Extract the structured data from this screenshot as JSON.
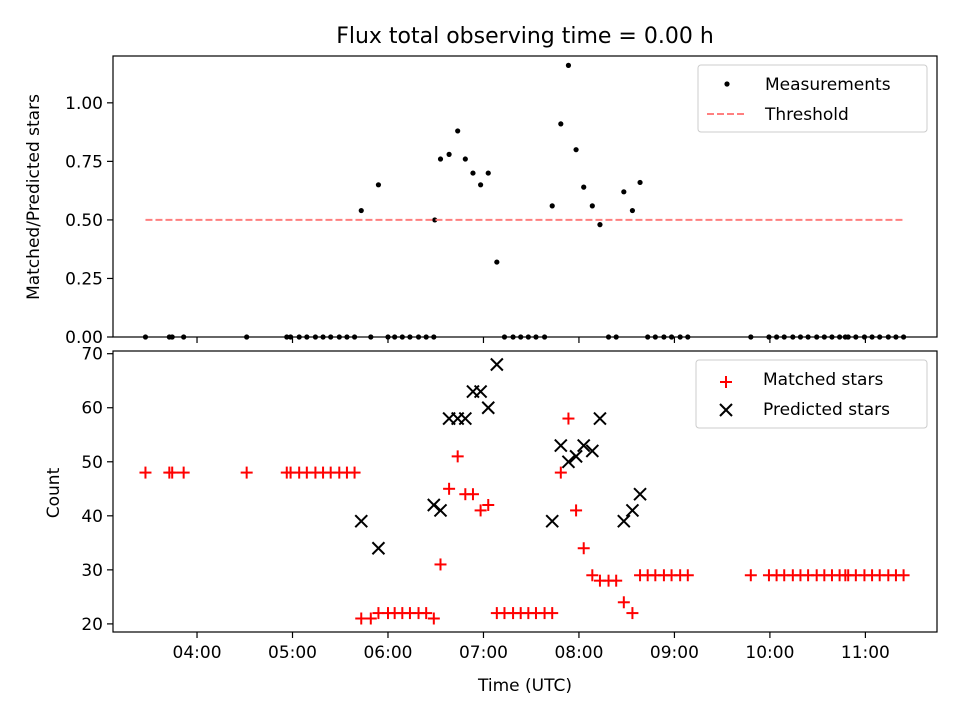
{
  "chart_data": [
    {
      "type": "scatter",
      "title": "Flux total observing time = 0.00 h",
      "xlabel": "",
      "ylabel": "Matched/Predicted stars",
      "xlim": [
        3.12,
        11.75
      ],
      "ylim": [
        0.0,
        1.2
      ],
      "yticks": [
        0.0,
        0.25,
        0.5,
        0.75,
        1.0
      ],
      "ytick_labels": [
        "0.00",
        "0.25",
        "0.50",
        "0.75",
        "1.00"
      ],
      "xticks": [
        4,
        5,
        6,
        7,
        8,
        9,
        10,
        11
      ],
      "xtick_labels_shown": false,
      "legend_position": "top-right",
      "series": [
        {
          "name": "Measurements",
          "marker": "dot",
          "color": "#000000",
          "x": [
            3.46,
            3.71,
            3.74,
            3.86,
            4.52,
            4.94,
            4.98,
            5.07,
            5.15,
            5.24,
            5.32,
            5.4,
            5.49,
            5.57,
            5.65,
            5.72,
            5.82,
            5.9,
            6.0,
            6.07,
            6.15,
            6.23,
            6.32,
            6.4,
            6.48,
            6.49,
            6.55,
            6.64,
            6.73,
            6.81,
            6.89,
            6.97,
            7.05,
            7.14,
            7.22,
            7.31,
            7.39,
            7.47,
            7.55,
            7.64,
            7.72,
            7.81,
            7.89,
            7.97,
            8.05,
            8.14,
            8.22,
            8.31,
            8.39,
            8.47,
            8.56,
            8.64,
            8.72,
            8.8,
            8.89,
            8.97,
            9.06,
            9.14,
            9.8,
            9.99,
            10.07,
            10.15,
            10.24,
            10.32,
            10.4,
            10.49,
            10.57,
            10.65,
            10.73,
            10.79,
            10.82,
            10.9,
            10.99,
            11.07,
            11.15,
            11.24,
            11.32,
            11.4
          ],
          "y": [
            0,
            0,
            0,
            0,
            0,
            0,
            0,
            0,
            0,
            0,
            0,
            0,
            0,
            0,
            0,
            0.54,
            0,
            0.65,
            0,
            0,
            0,
            0,
            0,
            0,
            0,
            0.5,
            0.76,
            0.78,
            0.88,
            0.76,
            0.7,
            0.65,
            0.7,
            0.32,
            0,
            0,
            0,
            0,
            0,
            0,
            0.56,
            0.91,
            1.16,
            0.8,
            0.64,
            0.56,
            0.48,
            0,
            0,
            0.62,
            0.54,
            0.66,
            0,
            0,
            0,
            0,
            0,
            0,
            0,
            0,
            0,
            0,
            0,
            0,
            0,
            0,
            0,
            0,
            0,
            0,
            0,
            0,
            0,
            0,
            0,
            0,
            0,
            0
          ]
        },
        {
          "name": "Threshold",
          "line_style": "dashed",
          "color": "#ff7f7f",
          "x": [
            3.46,
            11.4
          ],
          "y": [
            0.5,
            0.5
          ]
        }
      ]
    },
    {
      "type": "scatter",
      "title": "",
      "xlabel": "Time (UTC)",
      "ylabel": "Count",
      "xlim": [
        3.12,
        11.75
      ],
      "ylim": [
        18.5,
        70.5
      ],
      "yticks": [
        20,
        30,
        40,
        50,
        60,
        70
      ],
      "ytick_labels": [
        "20",
        "30",
        "40",
        "50",
        "60",
        "70"
      ],
      "xticks": [
        4,
        5,
        6,
        7,
        8,
        9,
        10,
        11
      ],
      "xtick_labels": [
        "04:00",
        "05:00",
        "06:00",
        "07:00",
        "08:00",
        "09:00",
        "10:00",
        "11:00"
      ],
      "legend_position": "top-right",
      "series": [
        {
          "name": "Matched stars",
          "marker": "plus",
          "color": "#ff0000",
          "x": [
            3.46,
            3.71,
            3.74,
            3.86,
            4.52,
            4.94,
            4.98,
            5.07,
            5.15,
            5.24,
            5.32,
            5.4,
            5.49,
            5.57,
            5.65,
            5.72,
            5.82,
            5.9,
            6.0,
            6.07,
            6.15,
            6.23,
            6.32,
            6.4,
            6.48,
            6.55,
            6.64,
            6.73,
            6.81,
            6.89,
            6.97,
            7.05,
            7.14,
            7.22,
            7.31,
            7.39,
            7.47,
            7.55,
            7.64,
            7.72,
            7.81,
            7.89,
            7.97,
            8.05,
            8.14,
            8.22,
            8.31,
            8.39,
            8.47,
            8.56,
            8.64,
            8.72,
            8.8,
            8.89,
            8.97,
            9.06,
            9.14,
            9.8,
            9.99,
            10.07,
            10.15,
            10.24,
            10.32,
            10.4,
            10.49,
            10.57,
            10.65,
            10.73,
            10.79,
            10.82,
            10.9,
            10.99,
            11.07,
            11.15,
            11.24,
            11.32,
            11.4
          ],
          "y": [
            48,
            48,
            48,
            48,
            48,
            48,
            48,
            48,
            48,
            48,
            48,
            48,
            48,
            48,
            48,
            21,
            21,
            22,
            22,
            22,
            22,
            22,
            22,
            22,
            21,
            31,
            45,
            51,
            44,
            44,
            41,
            42,
            22,
            22,
            22,
            22,
            22,
            22,
            22,
            22,
            48,
            58,
            41,
            34,
            29,
            28,
            28,
            28,
            24,
            22,
            29,
            29,
            29,
            29,
            29,
            29,
            29,
            29,
            29,
            29,
            29,
            29,
            29,
            29,
            29,
            29,
            29,
            29,
            29,
            29,
            29,
            29,
            29,
            29,
            29,
            29,
            29
          ]
        },
        {
          "name": "Predicted stars",
          "marker": "x",
          "color": "#000000",
          "x": [
            5.72,
            5.9,
            6.48,
            6.55,
            6.64,
            6.73,
            6.81,
            6.89,
            6.97,
            7.05,
            7.14,
            7.72,
            7.81,
            7.89,
            7.97,
            8.05,
            8.14,
            8.22,
            8.47,
            8.56,
            8.64
          ],
          "y": [
            39,
            34,
            42,
            41,
            58,
            58,
            58,
            63,
            63,
            60,
            68,
            39,
            53,
            50,
            51,
            53,
            52,
            58,
            39,
            41,
            44
          ]
        }
      ]
    }
  ]
}
